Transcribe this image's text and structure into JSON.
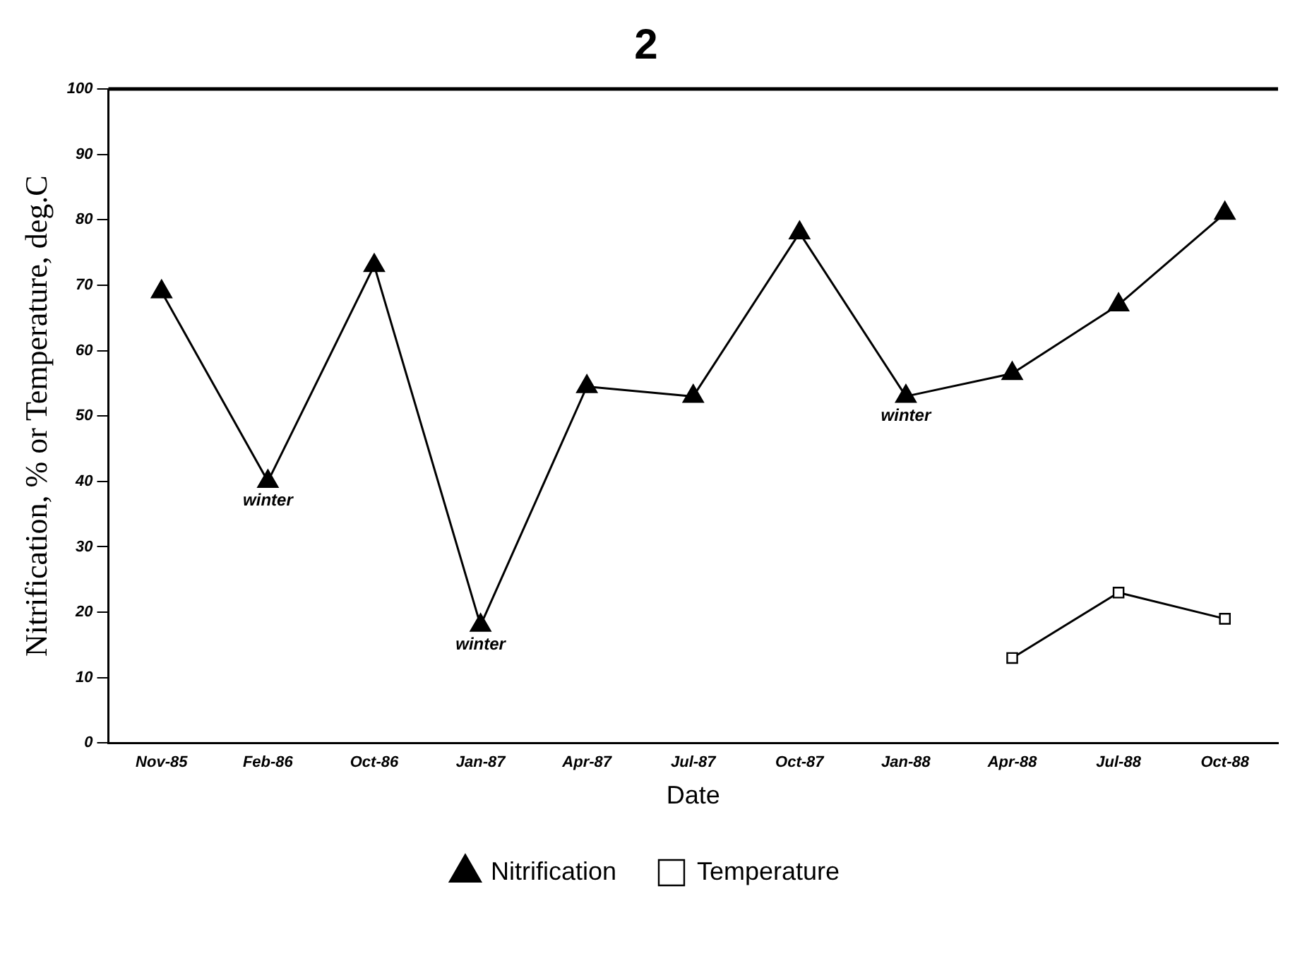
{
  "chart_data": {
    "type": "line",
    "title": "2",
    "xlabel": "Date",
    "ylabel": "Nitrification, % or Temperature, deg.C",
    "categories": [
      "Nov-85",
      "Feb-86",
      "Oct-86",
      "Jan-87",
      "Apr-87",
      "Jul-87",
      "Oct-87",
      "Jan-88",
      "Apr-88",
      "Jul-88",
      "Oct-88"
    ],
    "series": [
      {
        "name": "Nitrification",
        "color": "#000000",
        "marker": "triangle",
        "values": [
          69,
          40,
          73,
          18,
          54.5,
          53,
          78,
          53,
          56.5,
          67,
          81
        ]
      },
      {
        "name": "Temperature",
        "color": "#000000",
        "marker": "square",
        "values": [
          null,
          null,
          null,
          null,
          null,
          null,
          null,
          null,
          13,
          23,
          19
        ]
      }
    ],
    "ylim": [
      0,
      100
    ],
    "yticks": [
      0,
      10,
      20,
      30,
      40,
      50,
      60,
      70,
      80,
      90,
      100
    ],
    "grid": false,
    "legend": "bottom",
    "line_style": "solid",
    "annotations": [
      {
        "text": "winter",
        "x": "Feb-86",
        "y": 40
      },
      {
        "text": "winter",
        "x": "Jan-87",
        "y": 18
      },
      {
        "text": "winter",
        "x": "Jan-88",
        "y": 53
      }
    ]
  }
}
